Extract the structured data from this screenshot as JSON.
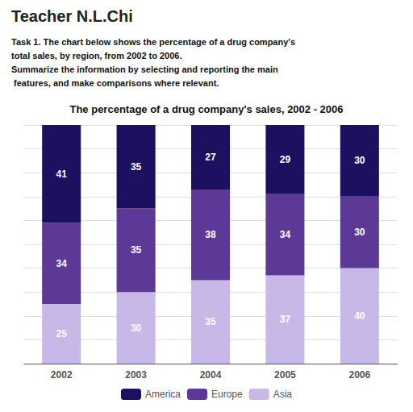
{
  "chart_data": {
    "type": "bar",
    "title": "The percentage of a drug company's sales, 2002 - 2006",
    "annotations": [
      "Teacher N.L.Chi",
      "Task 1. The chart below shows the percentage of a drug company's",
      "total sales, by region, from 2002 to 2006.",
      "Summarize the information by selecting and reporting the main",
      " features, and make comparisons where relevant."
    ],
    "categories": [
      "2002",
      "2003",
      "2004",
      "2005",
      "2006"
    ],
    "series": [
      {
        "name": "America",
        "color": "#1e1060",
        "values": [
          41,
          35,
          27,
          29,
          30
        ]
      },
      {
        "name": "Europe",
        "color": "#5c3996",
        "values": [
          34,
          35,
          38,
          34,
          30
        ]
      },
      {
        "name": "Asia",
        "color": "#c8b8e8",
        "values": [
          25,
          30,
          35,
          37,
          40
        ]
      }
    ],
    "stacked": true,
    "data_labels": true,
    "ylim": [
      0,
      100
    ],
    "yticks": [
      0,
      10,
      20,
      30,
      40,
      50,
      60,
      70,
      80,
      90,
      100
    ],
    "grid": true,
    "tick_labels": "x",
    "legend": "bottom"
  }
}
